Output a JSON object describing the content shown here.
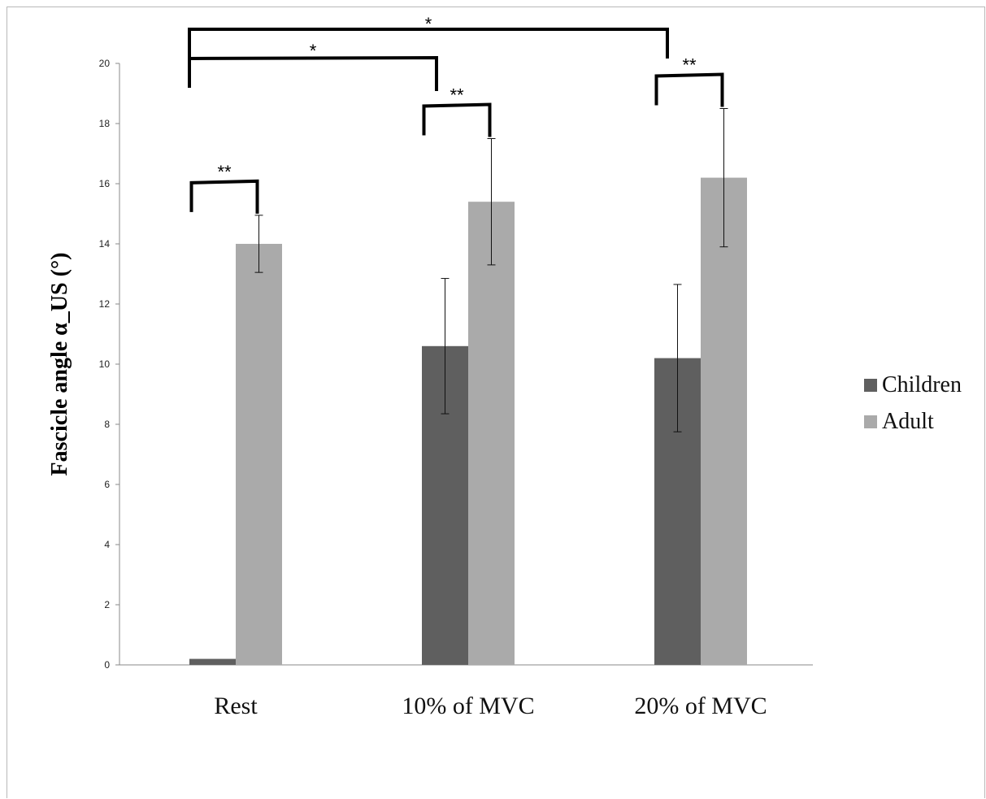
{
  "chart_data": {
    "type": "bar",
    "categories": [
      "Rest",
      "10% of MVC",
      "20% of MVC"
    ],
    "series": [
      {
        "name": "Children",
        "values": [
          0.2,
          10.6,
          10.2
        ],
        "errors": [
          0.0,
          2.25,
          2.45
        ],
        "color": "#5f5f5f"
      },
      {
        "name": "Adult",
        "values": [
          14.0,
          15.4,
          16.2
        ],
        "errors": [
          0.95,
          2.1,
          2.3
        ],
        "color": "#aaaaaa"
      }
    ],
    "ylabel": "Fascicle angle α_US (°)",
    "ylim": [
      0,
      20
    ],
    "yticks": [
      0,
      2,
      4,
      6,
      8,
      10,
      12,
      14,
      16,
      18,
      20
    ],
    "legend_position": "right",
    "significance": {
      "pair_label": "**",
      "group_label": "*"
    }
  }
}
